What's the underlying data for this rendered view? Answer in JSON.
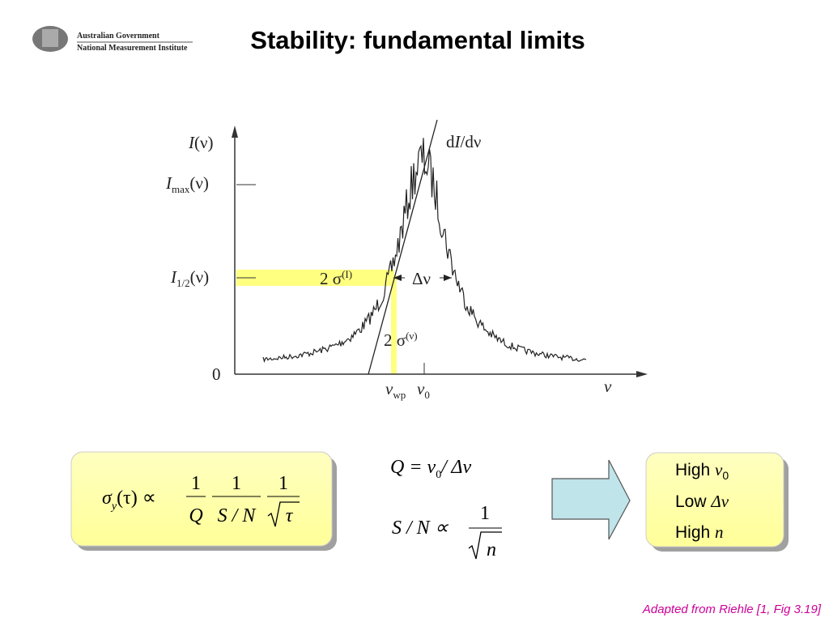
{
  "header": {
    "org_line1": "Australian Government",
    "org_line2": "National Measurement Institute",
    "title": "Stability: fundamental limits"
  },
  "diagram": {
    "y_label": {
      "main": "I",
      "tail": "(ν)"
    },
    "imax": {
      "main": "I",
      "sub": "max",
      "tail": "(ν)"
    },
    "ihalf": {
      "main": "I",
      "sub": "1/2",
      "tail": "(ν)"
    },
    "zero": "0",
    "slope": {
      "main": "d",
      "it": "I",
      "tail": "/dν"
    },
    "sigma_i": {
      "main": "2 σ",
      "sup": "(I)"
    },
    "delta_nu": "Δν",
    "sigma_nu": {
      "main": "2 σ",
      "sup": "(ν)"
    },
    "nu_wp": {
      "main": "ν",
      "sub": "wp"
    },
    "nu0": {
      "main": "ν",
      "sub": "0"
    },
    "x_label": "ν"
  },
  "formulas": {
    "sigma": {
      "main": "σ",
      "sub": "y",
      "arg": "(τ) ∝",
      "f1_num": "1",
      "f1_den": "Q",
      "f2_num": "1",
      "f2_den": "S / N",
      "f3_num": "1",
      "f3_den": "τ"
    },
    "q": {
      "lhs": "Q = ν",
      "sub": "0",
      "rhs": "/ Δν"
    },
    "sn": {
      "lhs": "S / N ∝",
      "num": "1",
      "den": "n"
    }
  },
  "summary": {
    "line1": {
      "text": "High",
      "sym": "ν",
      "sub": "0"
    },
    "line2": {
      "text": "Low",
      "sym": "Δν"
    },
    "line3": {
      "text": "High",
      "sym": "n"
    }
  },
  "footer": "Adapted from Riehle [1, Fig 3.19]"
}
